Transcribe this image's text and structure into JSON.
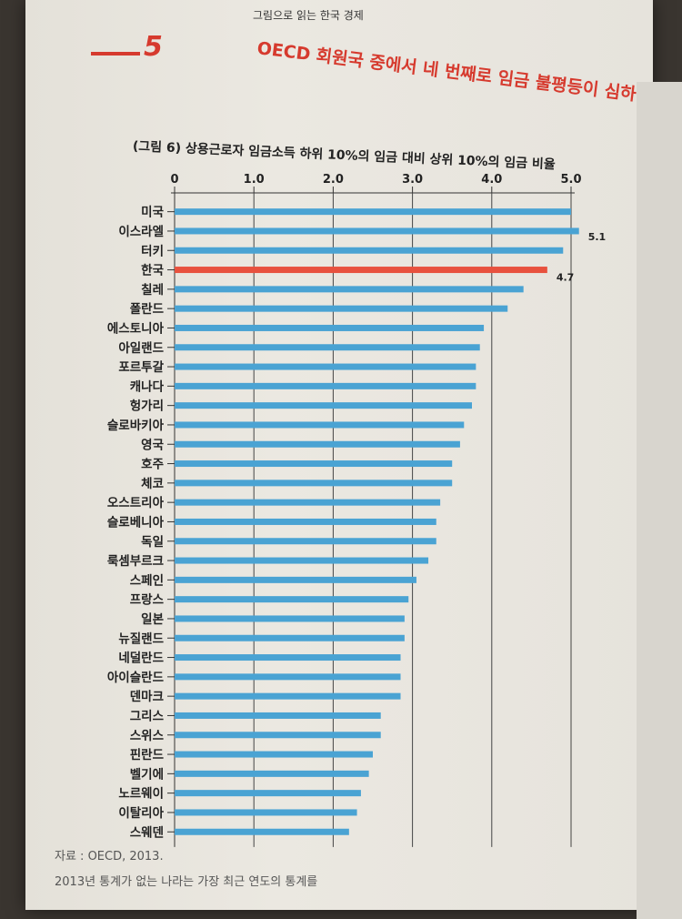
{
  "page": {
    "running_head": "그림으로 읽는 한국 경제",
    "chapter_number": "5",
    "chapter_title": "OECD 회원국 중에서 네 번째로 임금 불평등이 심하",
    "source": "자료 : OECD, 2013.",
    "note": "2013년 통계가 없는 나라는 가장 최근 연도의 통계를"
  },
  "colors": {
    "accent": "#d63a2e",
    "bar": "#4aa3d3",
    "highlight": "#e8513e"
  },
  "chart_data": {
    "type": "bar",
    "orientation": "horizontal",
    "title": "(그림 6) 상용근로자 임금소득 하위 10%의 임금 대비 상위 10%의 임금 비율",
    "xlim": [
      0,
      5.0
    ],
    "xticks": [
      "0",
      "1.0",
      "2.0",
      "3.0",
      "4.0",
      "5.0"
    ],
    "grid": true,
    "categories": [
      "미국",
      "이스라엘",
      "터키",
      "한국",
      "칠레",
      "폴란드",
      "에스토니아",
      "아일랜드",
      "포르투갈",
      "캐나다",
      "헝가리",
      "슬로바키아",
      "영국",
      "호주",
      "체코",
      "오스트리아",
      "슬로베니아",
      "독일",
      "룩셈부르크",
      "스페인",
      "프랑스",
      "일본",
      "뉴질랜드",
      "네덜란드",
      "아이슬란드",
      "덴마크",
      "그리스",
      "스위스",
      "핀란드",
      "벨기에",
      "노르웨이",
      "이탈리아",
      "스웨덴"
    ],
    "values": [
      5.0,
      5.1,
      4.9,
      4.7,
      4.4,
      4.2,
      3.9,
      3.85,
      3.8,
      3.8,
      3.75,
      3.65,
      3.6,
      3.5,
      3.5,
      3.35,
      3.3,
      3.3,
      3.2,
      3.05,
      2.95,
      2.9,
      2.9,
      2.85,
      2.85,
      2.85,
      2.6,
      2.6,
      2.5,
      2.45,
      2.35,
      2.3,
      2.2
    ],
    "highlight": "한국",
    "data_labels": [
      {
        "category": "이스라엘",
        "text": "5.1"
      },
      {
        "category": "한국",
        "text": "4.7"
      }
    ]
  }
}
